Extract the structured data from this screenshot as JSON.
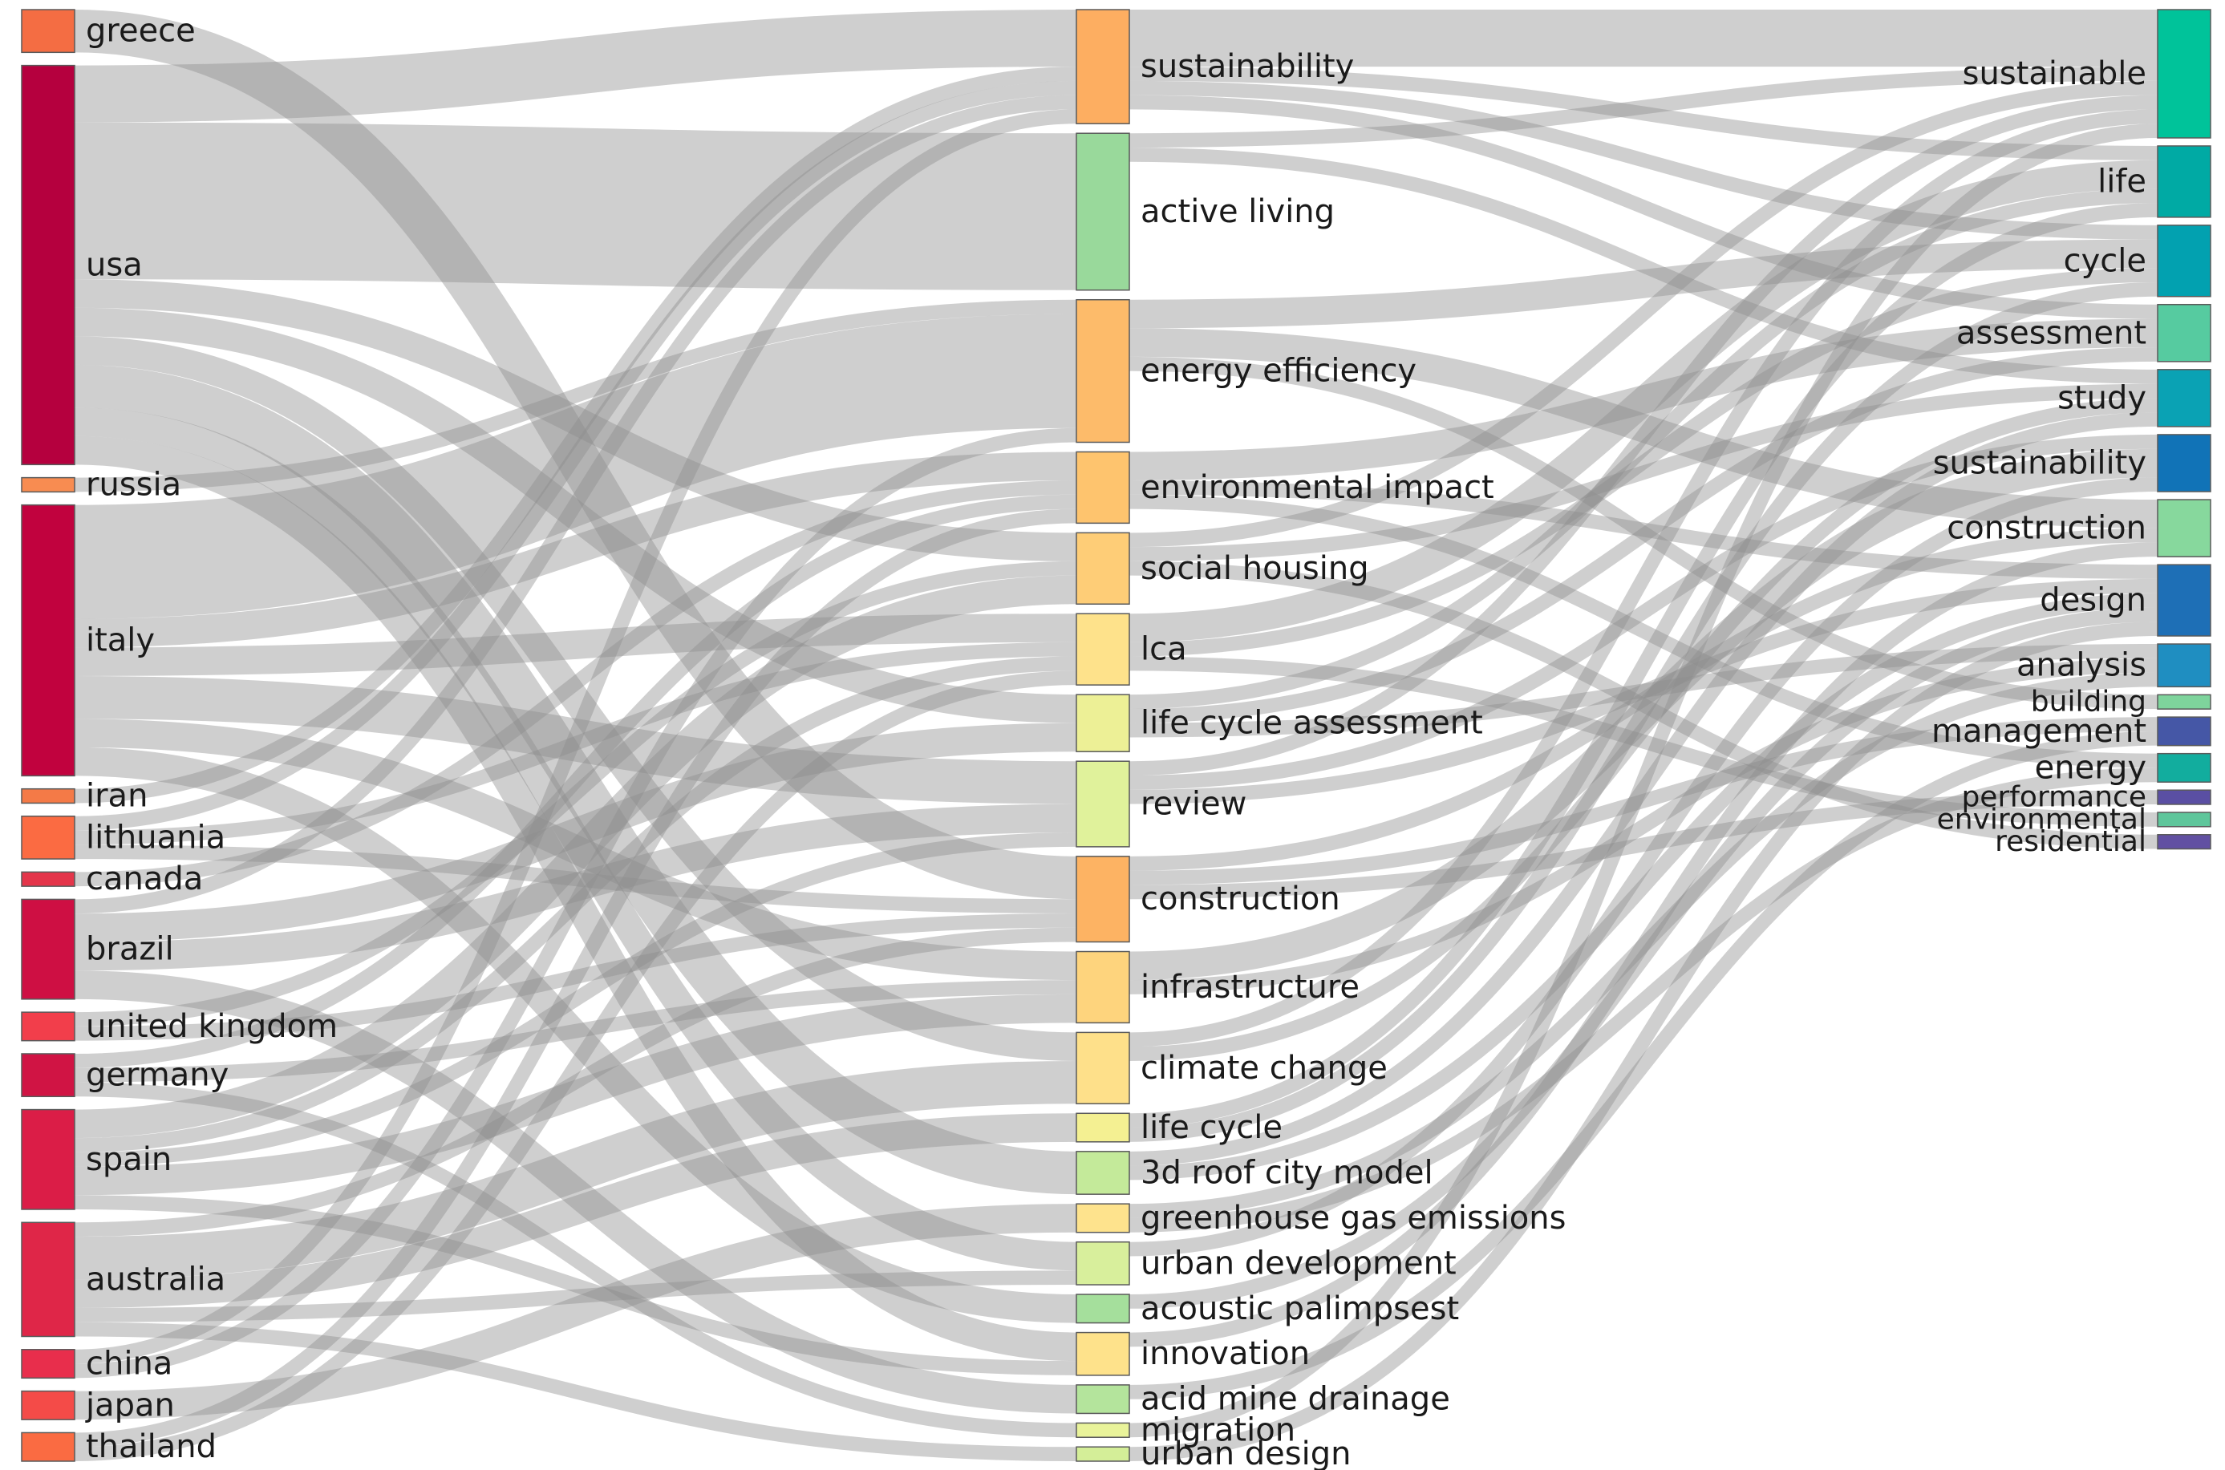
{
  "diagram": {
    "type": "sankey",
    "link_color": "#8c8c8c",
    "columns": [
      {
        "nodes": [
          {
            "id": "greece",
            "label": "greece",
            "color": "#f46d43"
          },
          {
            "id": "usa",
            "label": "usa",
            "color": "#b5003e"
          },
          {
            "id": "russia",
            "label": "russia",
            "color": "#f88c51"
          },
          {
            "id": "italy",
            "label": "italy",
            "color": "#c1023e"
          },
          {
            "id": "iran",
            "label": "iran",
            "color": "#f47a47"
          },
          {
            "id": "lithuania",
            "label": "lithuania",
            "color": "#fb6b42"
          },
          {
            "id": "canada",
            "label": "canada",
            "color": "#e4354a"
          },
          {
            "id": "brazil",
            "label": "brazil",
            "color": "#ce0f43"
          },
          {
            "id": "united_kingdom",
            "label": "united kingdom",
            "color": "#f23e4b"
          },
          {
            "id": "germany",
            "label": "germany",
            "color": "#d01444"
          },
          {
            "id": "spain",
            "label": "spain",
            "color": "#db1d47"
          },
          {
            "id": "australia",
            "label": "australia",
            "color": "#df2648"
          },
          {
            "id": "china",
            "label": "china",
            "color": "#e82e4c"
          },
          {
            "id": "japan",
            "label": "japan",
            "color": "#f44b48"
          },
          {
            "id": "thailand",
            "label": "thailand",
            "color": "#fa6b42"
          }
        ]
      },
      {
        "nodes": [
          {
            "id": "k_sustainability",
            "label": "sustainability",
            "color": "#fdae61"
          },
          {
            "id": "active_living",
            "label": "active living",
            "color": "#99d99b"
          },
          {
            "id": "energy_efficiency",
            "label": "energy efficiency",
            "color": "#fdbb6a"
          },
          {
            "id": "environmental_impact",
            "label": "environmental impact",
            "color": "#fec46e"
          },
          {
            "id": "social_housing",
            "label": "social housing",
            "color": "#fecd77"
          },
          {
            "id": "lca",
            "label": "lca",
            "color": "#fee28b"
          },
          {
            "id": "life_cycle_assessment",
            "label": "life cycle assessment",
            "color": "#edf096"
          },
          {
            "id": "review",
            "label": "review",
            "color": "#e0f29b"
          },
          {
            "id": "construction_k",
            "label": "construction",
            "color": "#fdb363"
          },
          {
            "id": "infrastructure",
            "label": "infrastructure",
            "color": "#fed47d"
          },
          {
            "id": "climate_change",
            "label": "climate change",
            "color": "#fee08a"
          },
          {
            "id": "life_cycle",
            "label": "life cycle",
            "color": "#f4f092"
          },
          {
            "id": "roof_city_model",
            "label": "3d roof city model",
            "color": "#c4ea9a"
          },
          {
            "id": "ghg",
            "label": "greenhouse gas emissions",
            "color": "#fee38d"
          },
          {
            "id": "urban_development",
            "label": "urban development",
            "color": "#d8ef9c"
          },
          {
            "id": "acoustic_palimpsest",
            "label": "acoustic palimpsest",
            "color": "#a5df9c"
          },
          {
            "id": "innovation",
            "label": "innovation",
            "color": "#fee28b"
          },
          {
            "id": "acid_mine_drainage",
            "label": "acid mine drainage",
            "color": "#b4e49c"
          },
          {
            "id": "migration",
            "label": "migration",
            "color": "#e9f39a"
          },
          {
            "id": "urban_design",
            "label": "urban design",
            "color": "#d4ee98"
          }
        ]
      },
      {
        "nodes": [
          {
            "id": "sustainable",
            "label": "sustainable",
            "color": "#00c39a"
          },
          {
            "id": "life",
            "label": "life",
            "color": "#00aaa4"
          },
          {
            "id": "cycle",
            "label": "cycle",
            "color": "#02a1b0"
          },
          {
            "id": "assessment",
            "label": "assessment",
            "color": "#56cba0"
          },
          {
            "id": "study",
            "label": "study",
            "color": "#0aa2b4"
          },
          {
            "id": "t_sustainability",
            "label": "sustainability",
            "color": "#1173b7"
          },
          {
            "id": "t_construction",
            "label": "construction",
            "color": "#87d89d"
          },
          {
            "id": "design",
            "label": "design",
            "color": "#1e6fb6"
          },
          {
            "id": "analysis",
            "label": "analysis",
            "color": "#1f8ec1"
          },
          {
            "id": "building",
            "label": "building",
            "color": "#7ed49c"
          },
          {
            "id": "management",
            "label": "management",
            "color": "#4557a6"
          },
          {
            "id": "energy",
            "label": "energy",
            "color": "#12ad9e"
          },
          {
            "id": "performance",
            "label": "performance",
            "color": "#5a4fa3"
          },
          {
            "id": "environmental",
            "label": "environmental",
            "color": "#5ec69b"
          },
          {
            "id": "residential",
            "label": "residential",
            "color": "#6150a2"
          }
        ]
      }
    ],
    "links": [
      [
        "greece",
        "construction_k",
        3
      ],
      [
        "usa",
        "k_sustainability",
        4
      ],
      [
        "usa",
        "active_living",
        11
      ],
      [
        "usa",
        "social_housing",
        2
      ],
      [
        "usa",
        "life_cycle_assessment",
        2
      ],
      [
        "usa",
        "roof_city_model",
        3
      ],
      [
        "usa",
        "urban_development",
        2
      ],
      [
        "usa",
        "innovation",
        2
      ],
      [
        "usa",
        "climate_change",
        2
      ],
      [
        "russia",
        "energy_efficiency",
        1
      ],
      [
        "italy",
        "energy_efficiency",
        8
      ],
      [
        "italy",
        "lca",
        2
      ],
      [
        "italy",
        "environmental_impact",
        2
      ],
      [
        "italy",
        "review",
        3
      ],
      [
        "italy",
        "acoustic_palimpsest",
        2
      ],
      [
        "italy",
        "infrastructure",
        2
      ],
      [
        "iran",
        "k_sustainability",
        1
      ],
      [
        "lithuania",
        "k_sustainability",
        1
      ],
      [
        "lithuania",
        "lca",
        1
      ],
      [
        "lithuania",
        "construction_k",
        1
      ],
      [
        "canada",
        "environmental_impact",
        1
      ],
      [
        "brazil",
        "life_cycle_assessment",
        2
      ],
      [
        "brazil",
        "review",
        2
      ],
      [
        "brazil",
        "acid_mine_drainage",
        2
      ],
      [
        "brazil",
        "k_sustainability",
        1
      ],
      [
        "united_kingdom",
        "social_housing",
        1
      ],
      [
        "united_kingdom",
        "construction_k",
        1
      ],
      [
        "germany",
        "environmental_impact",
        1
      ],
      [
        "germany",
        "infrastructure",
        1
      ],
      [
        "germany",
        "migration",
        1
      ],
      [
        "spain",
        "social_housing",
        2
      ],
      [
        "spain",
        "lca",
        1
      ],
      [
        "spain",
        "infrastructure",
        2
      ],
      [
        "spain",
        "review",
        1
      ],
      [
        "spain",
        "innovation",
        1
      ],
      [
        "australia",
        "climate_change",
        3
      ],
      [
        "australia",
        "life_cycle",
        2
      ],
      [
        "australia",
        "urban_design",
        1
      ],
      [
        "australia",
        "construction_k",
        1
      ],
      [
        "australia",
        "urban_development",
        1
      ],
      [
        "china",
        "k_sustainability",
        1
      ],
      [
        "china",
        "energy_efficiency",
        1
      ],
      [
        "japan",
        "ghg",
        2
      ],
      [
        "thailand",
        "environmental_impact",
        1
      ],
      [
        "thailand",
        "lca",
        1
      ],
      [
        "k_sustainability",
        "sustainable",
        4
      ],
      [
        "k_sustainability",
        "life",
        1
      ],
      [
        "k_sustainability",
        "cycle",
        1
      ],
      [
        "k_sustainability",
        "assessment",
        1
      ],
      [
        "active_living",
        "sustainable",
        1
      ],
      [
        "active_living",
        "study",
        1
      ],
      [
        "energy_efficiency",
        "cycle",
        2
      ],
      [
        "energy_efficiency",
        "t_construction",
        2
      ],
      [
        "energy_efficiency",
        "building",
        1
      ],
      [
        "environmental_impact",
        "assessment",
        2
      ],
      [
        "environmental_impact",
        "design",
        1
      ],
      [
        "environmental_impact",
        "energy",
        1
      ],
      [
        "social_housing",
        "sustainable",
        1
      ],
      [
        "social_housing",
        "study",
        1
      ],
      [
        "social_housing",
        "residential",
        1
      ],
      [
        "lca",
        "life",
        2
      ],
      [
        "lca",
        "cycle",
        1
      ],
      [
        "lca",
        "environmental",
        1
      ],
      [
        "life_cycle_assessment",
        "life",
        1
      ],
      [
        "life_cycle_assessment",
        "assessment",
        1
      ],
      [
        "life_cycle_assessment",
        "analysis",
        1
      ],
      [
        "review",
        "sustainable",
        1
      ],
      [
        "review",
        "t_sustainability",
        1
      ],
      [
        "review",
        "design",
        1
      ],
      [
        "construction_k",
        "t_construction",
        1
      ],
      [
        "construction_k",
        "management",
        1
      ],
      [
        "construction_k",
        "performance",
        1
      ],
      [
        "infrastructure",
        "t_sustainability",
        2
      ],
      [
        "infrastructure",
        "analysis",
        1
      ],
      [
        "climate_change",
        "sustainable",
        1
      ],
      [
        "climate_change",
        "study",
        1
      ],
      [
        "life_cycle",
        "life",
        1
      ],
      [
        "life_cycle",
        "cycle",
        1
      ],
      [
        "roof_city_model",
        "study",
        1
      ],
      [
        "roof_city_model",
        "design",
        1
      ],
      [
        "ghg",
        "energy",
        1
      ],
      [
        "ghg",
        "analysis",
        1
      ],
      [
        "urban_development",
        "t_sustainability",
        1
      ],
      [
        "acoustic_palimpsest",
        "design",
        1
      ],
      [
        "innovation",
        "t_construction",
        1
      ],
      [
        "acid_mine_drainage",
        "management",
        1
      ],
      [
        "migration",
        "sustainable",
        1
      ],
      [
        "urban_design",
        "design",
        1
      ]
    ]
  }
}
